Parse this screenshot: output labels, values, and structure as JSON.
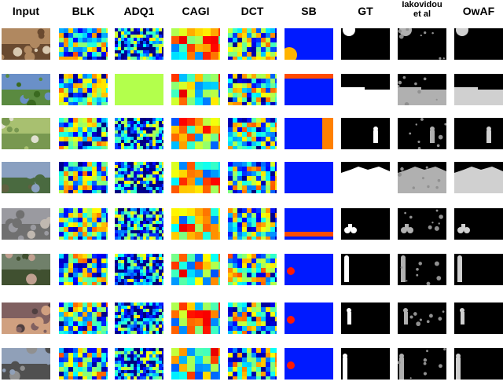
{
  "columns": [
    {
      "label": "Input",
      "kind": "photo"
    },
    {
      "label": "BLK",
      "kind": "heat-noisy"
    },
    {
      "label": "ADQ1",
      "kind": "heat-speckle"
    },
    {
      "label": "CAGI",
      "kind": "heat-blocks"
    },
    {
      "label": "DCT",
      "kind": "heat-noisy"
    },
    {
      "label": "SB",
      "kind": "heat-smooth"
    },
    {
      "label": "GT",
      "kind": "mask"
    },
    {
      "label": "Iakovidou\net al",
      "kind": "mask-noisy"
    },
    {
      "label": "OwAF",
      "kind": "mask-soft"
    }
  ],
  "rows": [
    {
      "photo": [
        "#b08860",
        "#6a4a30",
        "#d8c8b0"
      ],
      "mask": "circle-top"
    },
    {
      "photo": [
        "#6a90c8",
        "#5a8a40",
        "#3a6a20"
      ],
      "mask": "bottom-half"
    },
    {
      "photo": [
        "#a8c070",
        "#789850",
        "#e0e0d0"
      ],
      "mask": "person-center"
    },
    {
      "photo": [
        "#8aa0c0",
        "#4a6a40",
        "#606040"
      ],
      "mask": "mountain"
    },
    {
      "photo": [
        "#9a9aa0",
        "#707070",
        "#c0b8b0"
      ],
      "mask": "bike-left"
    },
    {
      "photo": [
        "#70806a",
        "#405030",
        "#c0a090"
      ],
      "mask": "people"
    },
    {
      "photo": [
        "#806060",
        "#d0a080",
        "#504040"
      ],
      "mask": "person-small"
    },
    {
      "photo": [
        "#90a0b8",
        "#505050",
        "#909090"
      ],
      "mask": "person-left"
    }
  ]
}
